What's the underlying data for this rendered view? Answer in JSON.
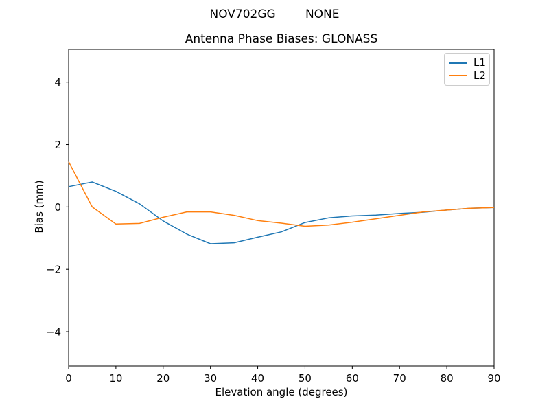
{
  "figure": {
    "suptitle": "NOV702GG        NONE"
  },
  "chart_data": {
    "type": "line",
    "title": "Antenna Phase Biases: GLONASS",
    "xlabel": "Elevation angle (degrees)",
    "ylabel": "Bias (mm)",
    "xlim": [
      0,
      90
    ],
    "ylim": [
      -5.1,
      5.05
    ],
    "xticks": [
      0,
      10,
      20,
      30,
      40,
      50,
      60,
      70,
      80,
      90
    ],
    "yticks": [
      -4,
      -2,
      0,
      2,
      4
    ],
    "grid": false,
    "legend_position": "upper right",
    "x": [
      0,
      5,
      10,
      15,
      20,
      25,
      30,
      35,
      40,
      45,
      50,
      55,
      60,
      65,
      70,
      75,
      80,
      85,
      90
    ],
    "series": [
      {
        "name": "L1",
        "color": "#1f77b4",
        "values": [
          0.65,
          0.8,
          0.5,
          0.1,
          -0.45,
          -0.87,
          -1.18,
          -1.15,
          -0.97,
          -0.8,
          -0.5,
          -0.35,
          -0.29,
          -0.26,
          -0.21,
          -0.17,
          -0.1,
          -0.04,
          -0.02
        ]
      },
      {
        "name": "L2",
        "color": "#ff7f0e",
        "values": [
          1.45,
          0.0,
          -0.55,
          -0.53,
          -0.33,
          -0.16,
          -0.16,
          -0.27,
          -0.44,
          -0.52,
          -0.62,
          -0.58,
          -0.49,
          -0.38,
          -0.27,
          -0.16,
          -0.1,
          -0.04,
          -0.02
        ]
      }
    ]
  }
}
